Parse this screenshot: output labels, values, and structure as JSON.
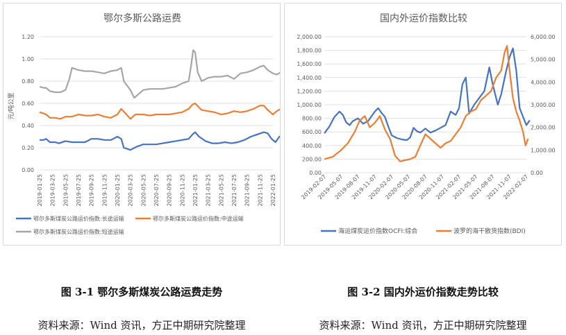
{
  "chart_data": [
    {
      "type": "line",
      "title": "鄂尔多斯公路运费",
      "ylabel": "元/吨公里",
      "xlabel": "",
      "ylim": [
        0,
        1.2
      ],
      "yticks": [
        "0.00",
        "0.20",
        "0.40",
        "0.60",
        "0.80",
        "1.00",
        "1.20"
      ],
      "grid": true,
      "legend": "bottom",
      "x_labels": [
        "2019-01-25",
        "2019-03-25",
        "2019-05-25",
        "2019-07-25",
        "2019-09-25",
        "2019-11-25",
        "2020-01-25",
        "2020-03-25",
        "2020-05-25",
        "2020-07-25",
        "2020-09-25",
        "2020-11-25",
        "2021-01-25",
        "2021-03-25",
        "2021-05-25",
        "2021-07-25",
        "2021-09-25",
        "2021-11-25",
        "2022-01-25"
      ],
      "series": [
        {
          "name": "鄂尔多斯煤炭公路运价指数:长途运输",
          "color": "#4472C4",
          "points": [
            [
              0,
              0.27
            ],
            [
              0.3,
              0.27
            ],
            [
              0.5,
              0.28
            ],
            [
              0.8,
              0.25
            ],
            [
              1.2,
              0.25
            ],
            [
              1.5,
              0.24
            ],
            [
              2,
              0.26
            ],
            [
              2.5,
              0.25
            ],
            [
              3,
              0.25
            ],
            [
              3.5,
              0.25
            ],
            [
              4,
              0.28
            ],
            [
              4.5,
              0.28
            ],
            [
              5,
              0.27
            ],
            [
              5.5,
              0.27
            ],
            [
              6,
              0.3
            ],
            [
              6.3,
              0.28
            ],
            [
              6.5,
              0.2
            ],
            [
              7,
              0.18
            ],
            [
              7.5,
              0.21
            ],
            [
              8,
              0.23
            ],
            [
              8.5,
              0.23
            ],
            [
              9,
              0.23
            ],
            [
              9.5,
              0.24
            ],
            [
              10,
              0.25
            ],
            [
              10.5,
              0.26
            ],
            [
              11,
              0.27
            ],
            [
              11.5,
              0.28
            ],
            [
              11.8,
              0.32
            ],
            [
              12,
              0.34
            ],
            [
              12.3,
              0.3
            ],
            [
              12.8,
              0.26
            ],
            [
              13.3,
              0.24
            ],
            [
              13.8,
              0.24
            ],
            [
              14.3,
              0.25
            ],
            [
              14.8,
              0.24
            ],
            [
              15.3,
              0.25
            ],
            [
              15.8,
              0.27
            ],
            [
              16.3,
              0.3
            ],
            [
              16.8,
              0.32
            ],
            [
              17.3,
              0.34
            ],
            [
              17.6,
              0.33
            ],
            [
              17.9,
              0.28
            ],
            [
              18.2,
              0.25
            ],
            [
              18.5,
              0.3
            ],
            [
              18.8,
              0.3
            ]
          ]
        },
        {
          "name": "鄂尔多斯煤炭公路运价指数:中途运输",
          "color": "#ED7D31",
          "points": [
            [
              0,
              0.52
            ],
            [
              0.3,
              0.51
            ],
            [
              0.5,
              0.5
            ],
            [
              0.8,
              0.47
            ],
            [
              1.2,
              0.47
            ],
            [
              1.6,
              0.46
            ],
            [
              2,
              0.48
            ],
            [
              2.5,
              0.48
            ],
            [
              3,
              0.5
            ],
            [
              3.5,
              0.49
            ],
            [
              4,
              0.49
            ],
            [
              4.5,
              0.5
            ],
            [
              5,
              0.48
            ],
            [
              5.5,
              0.47
            ],
            [
              6,
              0.5
            ],
            [
              6.3,
              0.55
            ],
            [
              6.7,
              0.5
            ],
            [
              7,
              0.46
            ],
            [
              7.4,
              0.5
            ],
            [
              8,
              0.5
            ],
            [
              8.5,
              0.49
            ],
            [
              9,
              0.5
            ],
            [
              9.5,
              0.5
            ],
            [
              10,
              0.5
            ],
            [
              10.5,
              0.51
            ],
            [
              11,
              0.52
            ],
            [
              11.5,
              0.55
            ],
            [
              11.8,
              0.59
            ],
            [
              12,
              0.6
            ],
            [
              12.5,
              0.54
            ],
            [
              13,
              0.53
            ],
            [
              13.5,
              0.52
            ],
            [
              14,
              0.5
            ],
            [
              14.5,
              0.51
            ],
            [
              15,
              0.53
            ],
            [
              15.5,
              0.52
            ],
            [
              16,
              0.53
            ],
            [
              16.5,
              0.55
            ],
            [
              17,
              0.58
            ],
            [
              17.3,
              0.58
            ],
            [
              17.6,
              0.54
            ],
            [
              18,
              0.5
            ],
            [
              18.3,
              0.53
            ],
            [
              18.6,
              0.55
            ],
            [
              18.8,
              0.57
            ]
          ]
        },
        {
          "name": "鄂尔多斯煤炭公路运价指数:短途运输",
          "color": "#A5A5A5",
          "points": [
            [
              0,
              0.75
            ],
            [
              0.3,
              0.74
            ],
            [
              0.5,
              0.74
            ],
            [
              0.8,
              0.71
            ],
            [
              1.2,
              0.7
            ],
            [
              1.6,
              0.7
            ],
            [
              2,
              0.72
            ],
            [
              2.3,
              0.82
            ],
            [
              2.5,
              0.92
            ],
            [
              3,
              0.9
            ],
            [
              3.5,
              0.89
            ],
            [
              4,
              0.89
            ],
            [
              4.5,
              0.88
            ],
            [
              5,
              0.87
            ],
            [
              5.5,
              0.89
            ],
            [
              6,
              0.9
            ],
            [
              6.3,
              0.92
            ],
            [
              6.5,
              0.8
            ],
            [
              7,
              0.72
            ],
            [
              7.3,
              0.65
            ],
            [
              7.6,
              0.68
            ],
            [
              8,
              0.72
            ],
            [
              8.5,
              0.73
            ],
            [
              9,
              0.73
            ],
            [
              9.5,
              0.73
            ],
            [
              10,
              0.74
            ],
            [
              10.5,
              0.75
            ],
            [
              11,
              0.78
            ],
            [
              11.5,
              0.8
            ],
            [
              11.7,
              0.95
            ],
            [
              11.85,
              1.08
            ],
            [
              12,
              1.06
            ],
            [
              12.2,
              0.88
            ],
            [
              12.5,
              0.8
            ],
            [
              13,
              0.83
            ],
            [
              13.5,
              0.84
            ],
            [
              14,
              0.84
            ],
            [
              14.5,
              0.85
            ],
            [
              15,
              0.82
            ],
            [
              15.5,
              0.87
            ],
            [
              16,
              0.88
            ],
            [
              16.5,
              0.9
            ],
            [
              17,
              0.93
            ],
            [
              17.3,
              0.94
            ],
            [
              17.6,
              0.9
            ],
            [
              18,
              0.87
            ],
            [
              18.3,
              0.86
            ],
            [
              18.6,
              0.88
            ],
            [
              18.8,
              0.92
            ]
          ]
        }
      ]
    },
    {
      "type": "line",
      "title": "国内外运价指数比较",
      "ylim_left": [
        0,
        2000
      ],
      "ylim_right": [
        0,
        6000
      ],
      "yticks_left": [
        "0.00",
        "200.00",
        "400.00",
        "600.00",
        "800.00",
        "1,000.00",
        "1,200.00",
        "1,400.00",
        "1,600.00",
        "1,800.00",
        "2,000.00"
      ],
      "yticks_right": [
        "0.00",
        "1,000.00",
        "2,000.00",
        "3,000.00",
        "4,000.00",
        "5,000.00",
        "6,000.00"
      ],
      "grid": true,
      "legend": "bottom",
      "x_labels": [
        "2019-02-07",
        "2019-05-07",
        "2019-08-07",
        "2019-11-07",
        "2020-02-07",
        "2020-05-07",
        "2020-08-07",
        "2020-11-07",
        "2021-02-07",
        "2021-05-07",
        "2021-08-07",
        "2021-11-07",
        "2022-02-07"
      ],
      "series": [
        {
          "name": "海运煤炭运价指数OCFI:综合",
          "axis": "left",
          "color": "#4472C4",
          "points": [
            [
              0,
              580
            ],
            [
              0.3,
              680
            ],
            [
              0.6,
              820
            ],
            [
              0.9,
              900
            ],
            [
              1.1,
              850
            ],
            [
              1.3,
              740
            ],
            [
              1.5,
              700
            ],
            [
              1.7,
              760
            ],
            [
              2,
              800
            ],
            [
              2.3,
              720
            ],
            [
              2.6,
              760
            ],
            [
              3,
              900
            ],
            [
              3.2,
              950
            ],
            [
              3.4,
              880
            ],
            [
              3.6,
              820
            ],
            [
              3.8,
              680
            ],
            [
              4,
              550
            ],
            [
              4.3,
              510
            ],
            [
              4.6,
              490
            ],
            [
              4.9,
              480
            ],
            [
              5.1,
              520
            ],
            [
              5.3,
              660
            ],
            [
              5.5,
              610
            ],
            [
              5.7,
              590
            ],
            [
              6,
              650
            ],
            [
              6.3,
              590
            ],
            [
              6.6,
              620
            ],
            [
              6.9,
              660
            ],
            [
              7.2,
              700
            ],
            [
              7.5,
              900
            ],
            [
              7.8,
              850
            ],
            [
              8,
              950
            ],
            [
              8.2,
              1300
            ],
            [
              8.4,
              1400
            ],
            [
              8.6,
              870
            ],
            [
              8.9,
              1000
            ],
            [
              9.2,
              1100
            ],
            [
              9.5,
              1200
            ],
            [
              9.8,
              1550
            ],
            [
              10,
              1300
            ],
            [
              10.3,
              1000
            ],
            [
              10.5,
              1150
            ],
            [
              10.8,
              1500
            ],
            [
              11,
              1700
            ],
            [
              11.2,
              1830
            ],
            [
              11.4,
              1500
            ],
            [
              11.6,
              950
            ],
            [
              11.8,
              820
            ],
            [
              12,
              700
            ],
            [
              12.2,
              770
            ]
          ]
        },
        {
          "name": "波罗的海干散货指数(BDI)",
          "axis": "right",
          "color": "#ED7D31",
          "points": [
            [
              0,
              600
            ],
            [
              0.5,
              700
            ],
            [
              1,
              1000
            ],
            [
              1.4,
              1300
            ],
            [
              1.8,
              1800
            ],
            [
              2.1,
              2300
            ],
            [
              2.4,
              2500
            ],
            [
              2.7,
              2000
            ],
            [
              3,
              2200
            ],
            [
              3.3,
              2500
            ],
            [
              3.6,
              1900
            ],
            [
              3.9,
              1500
            ],
            [
              4.2,
              750
            ],
            [
              4.5,
              500
            ],
            [
              4.8,
              550
            ],
            [
              5.1,
              600
            ],
            [
              5.4,
              700
            ],
            [
              5.7,
              1200
            ],
            [
              6,
              1700
            ],
            [
              6.3,
              1500
            ],
            [
              6.6,
              1300
            ],
            [
              6.9,
              1100
            ],
            [
              7.2,
              1300
            ],
            [
              7.5,
              1400
            ],
            [
              7.8,
              1700
            ],
            [
              8.1,
              2000
            ],
            [
              8.4,
              2500
            ],
            [
              8.7,
              2700
            ],
            [
              9,
              2800
            ],
            [
              9.3,
              3200
            ],
            [
              9.6,
              3400
            ],
            [
              9.9,
              3600
            ],
            [
              10.2,
              4200
            ],
            [
              10.5,
              4500
            ],
            [
              10.7,
              5300
            ],
            [
              10.85,
              5600
            ],
            [
              11,
              4500
            ],
            [
              11.2,
              3300
            ],
            [
              11.4,
              2700
            ],
            [
              11.6,
              2300
            ],
            [
              11.8,
              1800
            ],
            [
              11.95,
              1200
            ],
            [
              12.1,
              1500
            ]
          ]
        }
      ]
    }
  ],
  "captions": {
    "left_caption": "图 3-1  鄂尔多斯煤炭公路运费走势",
    "right_caption": "图 3-2 国内外运价指数走势比较",
    "left_source": "资料来源：Wind 资讯，方正中期研究院整理",
    "right_source": "资料来源：Wind 资讯，方正中期研究院整理"
  }
}
